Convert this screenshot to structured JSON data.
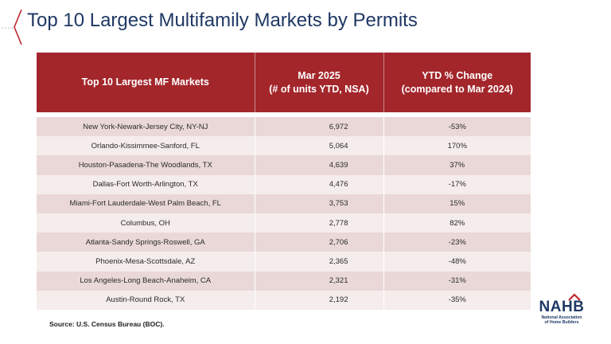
{
  "title": "Top 10 Largest Multifamily Markets by Permits",
  "table": {
    "headers": {
      "market": "Top 10 Largest MF Markets",
      "units_line1": "Mar 2025",
      "units_line2": "(# of units YTD, NSA)",
      "change_line1": "YTD % Change",
      "change_line2": "(compared to Mar 2024)"
    },
    "rows": [
      {
        "market": "New York-Newark-Jersey City, NY-NJ",
        "units": "6,972",
        "change": "-53%"
      },
      {
        "market": "Orlando-Kissimmee-Sanford, FL",
        "units": "5,064",
        "change": "170%"
      },
      {
        "market": "Houston-Pasadena-The Woodlands, TX",
        "units": "4,639",
        "change": "37%"
      },
      {
        "market": "Dallas-Fort Worth-Arlington, TX",
        "units": "4,476",
        "change": "-17%"
      },
      {
        "market": "Miami-Fort Lauderdale-West Palm Beach, FL",
        "units": "3,753",
        "change": "15%"
      },
      {
        "market": "Columbus, OH",
        "units": "2,778",
        "change": "82%"
      },
      {
        "market": "Atlanta-Sandy Springs-Roswell, GA",
        "units": "2,706",
        "change": "-23%"
      },
      {
        "market": "Phoenix-Mesa-Scottsdale, AZ",
        "units": "2,365",
        "change": "-48%"
      },
      {
        "market": "Los Angeles-Long Beach-Anaheim, CA",
        "units": "2,321",
        "change": "-31%"
      },
      {
        "market": "Austin-Round Rock, TX",
        "units": "2,192",
        "change": "-35%"
      }
    ]
  },
  "source": "Source: U.S. Census Bureau (BOC).",
  "logo": {
    "word": "NAHB",
    "line1": "National Association",
    "line2": "of Home Builders",
    "icon": "roof-icon",
    "color": "#1f3864",
    "accent": "#c0272d"
  },
  "colors": {
    "title": "#1f3864",
    "header_bg": "#a3262b",
    "row_odd": "#ead8d8",
    "row_even": "#f5ecec"
  }
}
